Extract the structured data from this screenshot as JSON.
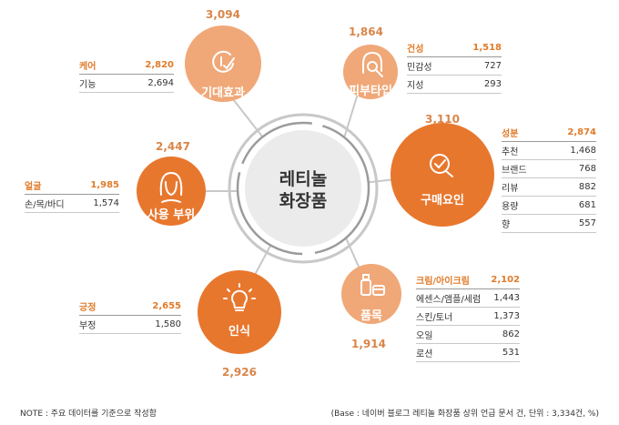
{
  "center": {
    "line1": "레티놀",
    "line2": "화장품"
  },
  "colors": {
    "light": "#f0a878",
    "dark": "#e8772e",
    "line": "#c8c8c8",
    "accent_text": "#e07b2a"
  },
  "nodes": {
    "care_effect": {
      "label": "기대효과",
      "count": "3,094",
      "icon": "check-circle-icon"
    },
    "skin_type": {
      "label": "피부타입",
      "count": "1,864",
      "icon": "face-magnifier-icon"
    },
    "purchase_factor": {
      "label": "구매요인",
      "count": "3,110",
      "icon": "magnifier-check-icon"
    },
    "body_part": {
      "label": "사용 부위",
      "count": "2,447",
      "icon": "woman-face-icon"
    },
    "item": {
      "label": "품목",
      "count": "1,914",
      "icon": "cosmetics-icon"
    },
    "perception": {
      "label": "인식",
      "count": "2,926",
      "icon": "lightbulb-icon"
    }
  },
  "tables": {
    "care_effect": [
      {
        "name": "케어",
        "value": "2,820"
      },
      {
        "name": "기능",
        "value": "2,694"
      }
    ],
    "skin_type": [
      {
        "name": "건성",
        "value": "1,518"
      },
      {
        "name": "민감성",
        "value": "727"
      },
      {
        "name": "지성",
        "value": "293"
      }
    ],
    "purchase_factor": [
      {
        "name": "성분",
        "value": "2,874"
      },
      {
        "name": "추천",
        "value": "1,468"
      },
      {
        "name": "브랜드",
        "value": "768"
      },
      {
        "name": "리뷰",
        "value": "882"
      },
      {
        "name": "용량",
        "value": "681"
      },
      {
        "name": "향",
        "value": "557"
      }
    ],
    "body_part": [
      {
        "name": "얼굴",
        "value": "1,985"
      },
      {
        "name": "손/목/바디",
        "value": "1,574"
      }
    ],
    "item": [
      {
        "name": "크림/아이크림",
        "value": "2,102"
      },
      {
        "name": "에센스/앰플/세럼",
        "value": "1,443"
      },
      {
        "name": "스킨/토너",
        "value": "1,373"
      },
      {
        "name": "오일",
        "value": "862"
      },
      {
        "name": "로션",
        "value": "531"
      }
    ],
    "perception": [
      {
        "name": "긍정",
        "value": "2,655"
      },
      {
        "name": "부정",
        "value": "1,580"
      }
    ]
  },
  "footer": {
    "note": "NOTE : 주요 데이터를 기준으로 작성함",
    "base": "(Base : 네이버 블로그 레티놀 화장품 상위 언급 문서 건, 단위 : 3,334건, %)"
  }
}
